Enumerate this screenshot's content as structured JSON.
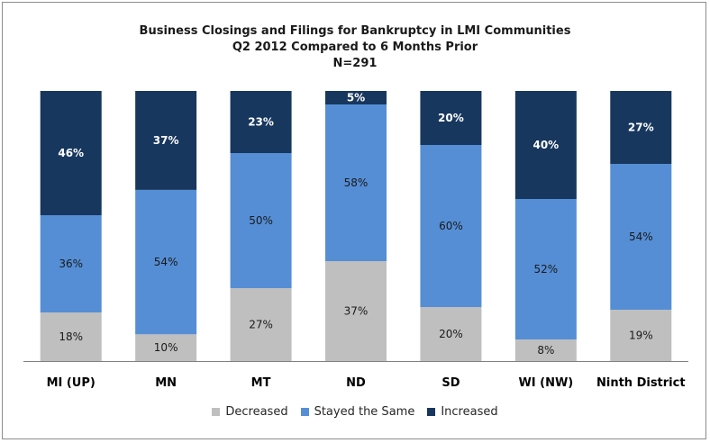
{
  "chart_data": {
    "type": "bar",
    "stacked": true,
    "percent": true,
    "title": "Business Closings and Filings for Bankruptcy in LMI Communities",
    "subtitle": "Q2 2012 Compared to 6 Months Prior",
    "note": "N=291",
    "categories": [
      "MI (UP)",
      "MN",
      "MT",
      "ND",
      "SD",
      "WI (NW)",
      "Ninth District"
    ],
    "series": [
      {
        "name": "Decreased",
        "color": "#bfbfbf",
        "values": [
          18,
          10,
          27,
          37,
          20,
          8,
          19
        ],
        "labels": [
          "18%",
          "10%",
          "27%",
          "37%",
          "20%",
          "8%",
          "19%"
        ]
      },
      {
        "name": "Stayed the Same",
        "color": "#558ed5",
        "values": [
          36,
          54,
          50,
          58,
          60,
          52,
          54
        ],
        "labels": [
          "36%",
          "54%",
          "50%",
          "58%",
          "60%",
          "52%",
          "54%"
        ]
      },
      {
        "name": "Increased",
        "color": "#17375e",
        "values": [
          46,
          37,
          23,
          5,
          20,
          40,
          27
        ],
        "labels": [
          "46%",
          "37%",
          "23%",
          "5%",
          "20%",
          "40%",
          "27%"
        ]
      }
    ],
    "ylim": [
      0,
      100
    ],
    "legend_position": "bottom",
    "grid": false
  }
}
